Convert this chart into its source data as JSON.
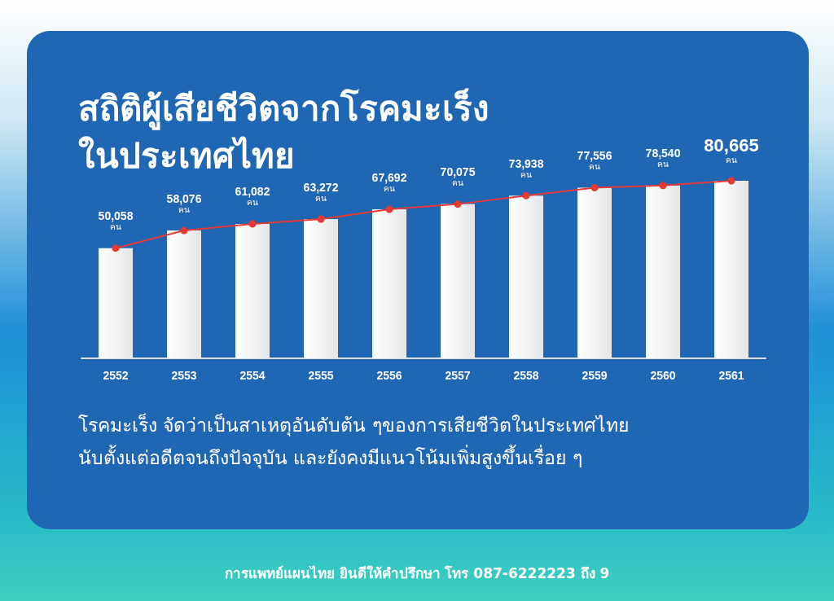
{
  "chart_data": {
    "type": "bar",
    "title": "สถิติผู้เสียชีวิตจากโรคมะเร็ง\nในประเทศไทย",
    "categories": [
      "2552",
      "2553",
      "2554",
      "2555",
      "2556",
      "2557",
      "2558",
      "2559",
      "2560",
      "2561"
    ],
    "series": [
      {
        "color": "#e6e6e6",
        "values": [
          50058,
          58076,
          61082,
          63272,
          67692,
          70075,
          73938,
          77556,
          78540,
          80665
        ]
      },
      {
        "type": "line",
        "color": "#e53935",
        "values": [
          50058,
          58076,
          61082,
          63272,
          67692,
          70075,
          73938,
          77556,
          78540,
          80665
        ],
        "value_labels": [
          "50,058\nคน",
          "58,076\nคน",
          "61,082\nคน",
          "63,272\nคน",
          "67,692\nคน",
          "70,075\nคน",
          "73,938\nคน",
          "77,556\nคน",
          "78,540\nคน",
          "80,665\nคน"
        ]
      }
    ],
    "tick_labels": "x",
    "marker": "circle",
    "annotations": [
      "โรคมะเร็ง จัดว่าเป็นสาเหตุอันดับต้น ๆของการเสียชีวิตในประเทศไทย\nนับตั้งแต่อดีตจนถึงปัจจุบัน และยังคงมีแนวโน้มเพิ่มสูงขึ้นเรื่อย ๆ",
      "การแพทย์แผนไทย ยินดีให้คำปรึกษา โทร 087-6222223 ถึง 9"
    ]
  }
}
